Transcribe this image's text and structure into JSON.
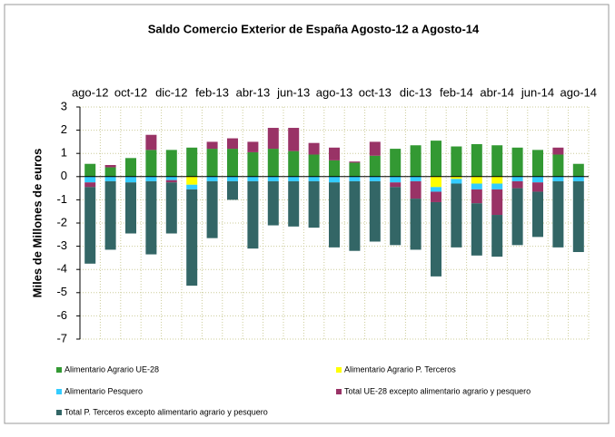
{
  "chart_data": {
    "type": "bar",
    "stacked": true,
    "title": "Saldo Comercio Exterior de España Agosto-12 a Agosto-14",
    "y_label": "Miles de Millones de euros",
    "categories": [
      "ago-12",
      null,
      "oct-12",
      null,
      "dic-12",
      null,
      "feb-13",
      null,
      "abr-13",
      null,
      "jun-13",
      null,
      "ago-13",
      null,
      "oct-13",
      null,
      "dic-13",
      null,
      "feb-14",
      null,
      "abr-14",
      null,
      "jun-14",
      null,
      "ago-14"
    ],
    "series": [
      {
        "name": "Alimentario Agrario UE-28",
        "color": "#339933",
        "values": [
          0.55,
          0.4,
          0.8,
          1.15,
          1.15,
          1.25,
          1.2,
          1.2,
          1.05,
          1.2,
          1.1,
          0.95,
          0.7,
          0.6,
          0.9,
          1.2,
          1.35,
          1.55,
          1.3,
          1.4,
          1.35,
          1.25,
          1.15,
          0.95,
          0.55
        ]
      },
      {
        "name": "Alimentario Agrario P. Terceros",
        "color": "#ffff00",
        "values": [
          0,
          0,
          0,
          0,
          0,
          -0.35,
          0,
          0,
          0,
          0,
          0,
          0,
          0,
          0,
          0,
          0,
          0,
          -0.45,
          -0.1,
          -0.3,
          -0.3,
          0,
          0,
          0,
          0
        ]
      },
      {
        "name": "Alimentario Pesquero",
        "color": "#33ccff",
        "values": [
          -0.25,
          -0.2,
          -0.25,
          -0.2,
          -0.15,
          -0.2,
          -0.2,
          -0.2,
          -0.2,
          -0.2,
          -0.2,
          -0.2,
          -0.25,
          -0.2,
          -0.2,
          -0.25,
          -0.2,
          -0.2,
          -0.2,
          -0.25,
          -0.25,
          -0.2,
          -0.25,
          -0.2,
          -0.2
        ]
      },
      {
        "name": "Total UE-28 excepto alimentario agrario y pesquero",
        "color": "#993366",
        "values": [
          -0.2,
          0.1,
          0,
          0.65,
          -0.1,
          0,
          0.3,
          0.45,
          0.45,
          0.9,
          1.0,
          0.5,
          0.55,
          0.05,
          0.6,
          -0.2,
          -0.75,
          -0.45,
          0,
          -0.6,
          -1.1,
          -0.3,
          -0.4,
          0.3,
          0
        ]
      },
      {
        "name": "Total P. Terceros excepto alimentario agrario y pesquero",
        "color": "#336666",
        "values": [
          -3.3,
          -2.95,
          -2.2,
          -3.15,
          -2.2,
          -4.15,
          -2.45,
          -0.8,
          -2.9,
          -1.9,
          -1.95,
          -2.0,
          -2.8,
          -3.0,
          -2.6,
          -2.5,
          -2.2,
          -3.2,
          -2.75,
          -2.25,
          -1.8,
          -2.45,
          -1.95,
          -2.85,
          -3.05
        ]
      }
    ],
    "ylim": [
      -7,
      3
    ],
    "yticks": [
      -7,
      -6,
      -5,
      -4,
      -3,
      -2,
      -1,
      0,
      1,
      2,
      3
    ],
    "grid": true
  }
}
